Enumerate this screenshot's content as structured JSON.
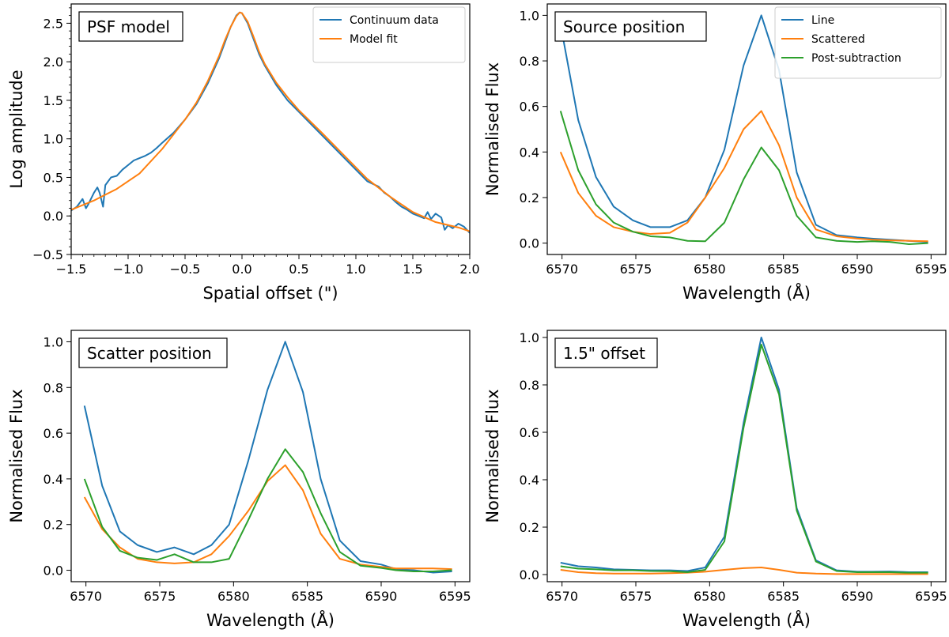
{
  "colors": {
    "blue": "#1f77b4",
    "orange": "#ff7f0e",
    "green": "#2ca02c"
  },
  "chart_data": [
    {
      "type": "line",
      "title": "PSF model",
      "xlabel": "Spatial offset (\")",
      "ylabel": "Log amplitude",
      "xlim": [
        -1.5,
        2.0
      ],
      "ylim": [
        -0.5,
        2.75
      ],
      "xticks": [
        -1.5,
        -1.0,
        -0.5,
        0.0,
        0.5,
        1.0,
        1.5,
        2.0
      ],
      "xtick_labels": [
        "−1.5",
        "−1.0",
        "−0.5",
        "0.0",
        "0.5",
        "1.0",
        "1.5",
        "2.0"
      ],
      "yticks": [
        -0.5,
        0.0,
        0.5,
        1.0,
        1.5,
        2.0,
        2.5
      ],
      "ytick_labels": [
        "−0.5",
        "0.0",
        "0.5",
        "1.0",
        "1.5",
        "2.0",
        "2.5"
      ],
      "legend_position": "top-right",
      "series": [
        {
          "name": "Continuum data",
          "color": "#1f77b4",
          "x": [
            -1.5,
            -1.45,
            -1.4,
            -1.37,
            -1.35,
            -1.3,
            -1.27,
            -1.25,
            -1.22,
            -1.2,
            -1.15,
            -1.1,
            -1.05,
            -1.0,
            -0.95,
            -0.9,
            -0.85,
            -0.8,
            -0.75,
            -0.7,
            -0.6,
            -0.5,
            -0.4,
            -0.3,
            -0.2,
            -0.15,
            -0.1,
            -0.05,
            -0.02,
            0.0,
            0.05,
            0.1,
            0.15,
            0.2,
            0.3,
            0.4,
            0.5,
            0.6,
            0.7,
            0.8,
            0.9,
            1.0,
            1.1,
            1.2,
            1.25,
            1.3,
            1.35,
            1.4,
            1.45,
            1.5,
            1.55,
            1.6,
            1.63,
            1.66,
            1.7,
            1.75,
            1.78,
            1.81,
            1.85,
            1.9,
            1.95,
            2.0
          ],
          "y": [
            0.07,
            0.12,
            0.22,
            0.1,
            0.15,
            0.3,
            0.37,
            0.3,
            0.12,
            0.4,
            0.5,
            0.52,
            0.6,
            0.66,
            0.72,
            0.75,
            0.78,
            0.82,
            0.88,
            0.95,
            1.08,
            1.25,
            1.45,
            1.72,
            2.05,
            2.25,
            2.45,
            2.6,
            2.64,
            2.63,
            2.5,
            2.3,
            2.1,
            1.95,
            1.7,
            1.5,
            1.35,
            1.2,
            1.05,
            0.9,
            0.75,
            0.6,
            0.45,
            0.38,
            0.3,
            0.25,
            0.18,
            0.12,
            0.08,
            0.03,
            0.0,
            -0.03,
            0.05,
            -0.04,
            0.03,
            -0.02,
            -0.18,
            -0.12,
            -0.16,
            -0.1,
            -0.14,
            -0.22
          ]
        },
        {
          "name": "Model fit",
          "color": "#ff7f0e",
          "x": [
            -1.5,
            -1.3,
            -1.1,
            -0.9,
            -0.7,
            -0.5,
            -0.4,
            -0.3,
            -0.2,
            -0.15,
            -0.1,
            -0.05,
            -0.02,
            0.0,
            0.05,
            0.1,
            0.15,
            0.2,
            0.3,
            0.4,
            0.5,
            0.7,
            0.9,
            1.1,
            1.3,
            1.5,
            1.7,
            1.9,
            2.0
          ],
          "y": [
            0.08,
            0.2,
            0.35,
            0.55,
            0.87,
            1.25,
            1.47,
            1.75,
            2.08,
            2.28,
            2.45,
            2.59,
            2.64,
            2.63,
            2.52,
            2.33,
            2.13,
            1.97,
            1.73,
            1.54,
            1.37,
            1.08,
            0.78,
            0.48,
            0.25,
            0.05,
            -0.08,
            -0.15,
            -0.2
          ]
        }
      ]
    },
    {
      "type": "line",
      "title": "Source position",
      "xlabel": "Wavelength (Å)",
      "ylabel": "Normalised Flux",
      "xlim": [
        6569,
        6596
      ],
      "ylim": [
        -0.05,
        1.05
      ],
      "xticks": [
        6570,
        6575,
        6580,
        6585,
        6590,
        6595
      ],
      "xtick_labels": [
        "6570",
        "6575",
        "6580",
        "6585",
        "6590",
        "6595"
      ],
      "yticks": [
        0.0,
        0.2,
        0.4,
        0.6,
        0.8,
        1.0
      ],
      "ytick_labels": [
        "0.0",
        "0.2",
        "0.4",
        "0.6",
        "0.8",
        "1.0"
      ],
      "legend_position": "top-right",
      "x": [
        6569.9,
        6571.1,
        6572.3,
        6573.5,
        6574.8,
        6576.0,
        6577.3,
        6578.5,
        6579.7,
        6581.0,
        6582.3,
        6583.5,
        6584.7,
        6585.9,
        6587.2,
        6588.6,
        6590.0,
        6591.0,
        6592.2,
        6593.5,
        6594.8
      ],
      "series": [
        {
          "name": "Line",
          "color": "#1f77b4",
          "values": [
            0.96,
            0.54,
            0.29,
            0.16,
            0.1,
            0.07,
            0.07,
            0.1,
            0.2,
            0.41,
            0.78,
            1.0,
            0.76,
            0.31,
            0.08,
            0.035,
            0.025,
            0.02,
            0.015,
            0.01,
            0.005
          ]
        },
        {
          "name": "Scattered",
          "color": "#ff7f0e",
          "values": [
            0.4,
            0.22,
            0.12,
            0.07,
            0.05,
            0.04,
            0.045,
            0.09,
            0.2,
            0.33,
            0.5,
            0.58,
            0.43,
            0.2,
            0.06,
            0.03,
            0.02,
            0.015,
            0.012,
            0.01,
            0.008
          ]
        },
        {
          "name": "Post-subtraction",
          "color": "#2ca02c",
          "values": [
            0.58,
            0.32,
            0.17,
            0.09,
            0.05,
            0.03,
            0.025,
            0.01,
            0.008,
            0.09,
            0.28,
            0.42,
            0.32,
            0.12,
            0.025,
            0.01,
            0.005,
            0.008,
            0.005,
            -0.005,
            0.0
          ]
        }
      ]
    },
    {
      "type": "line",
      "title": "Scatter position",
      "xlabel": "Wavelength (Å)",
      "ylabel": "Normalised Flux",
      "xlim": [
        6569,
        6596
      ],
      "ylim": [
        -0.05,
        1.05
      ],
      "xticks": [
        6570,
        6575,
        6580,
        6585,
        6590,
        6595
      ],
      "xtick_labels": [
        "6570",
        "6575",
        "6580",
        "6585",
        "6590",
        "6595"
      ],
      "yticks": [
        0.0,
        0.2,
        0.4,
        0.6,
        0.8,
        1.0
      ],
      "ytick_labels": [
        "0.0",
        "0.2",
        "0.4",
        "0.6",
        "0.8",
        "1.0"
      ],
      "x": [
        6569.9,
        6571.1,
        6572.3,
        6573.5,
        6574.8,
        6576.0,
        6577.3,
        6578.5,
        6579.7,
        6581.0,
        6582.3,
        6583.5,
        6584.7,
        6585.9,
        6587.2,
        6588.6,
        6590.0,
        6591.0,
        6592.2,
        6593.5,
        6594.8
      ],
      "series": [
        {
          "name": "Line",
          "color": "#1f77b4",
          "values": [
            0.72,
            0.37,
            0.17,
            0.11,
            0.08,
            0.1,
            0.07,
            0.11,
            0.2,
            0.48,
            0.79,
            1.0,
            0.78,
            0.4,
            0.13,
            0.04,
            0.025,
            0.005,
            0.0,
            -0.01,
            -0.005
          ]
        },
        {
          "name": "Scattered",
          "color": "#ff7f0e",
          "values": [
            0.32,
            0.18,
            0.1,
            0.05,
            0.035,
            0.03,
            0.035,
            0.07,
            0.15,
            0.26,
            0.39,
            0.46,
            0.35,
            0.16,
            0.05,
            0.025,
            0.015,
            0.008,
            0.008,
            0.008,
            0.005
          ]
        },
        {
          "name": "Post-subtraction",
          "color": "#2ca02c",
          "values": [
            0.4,
            0.19,
            0.085,
            0.055,
            0.045,
            0.07,
            0.035,
            0.035,
            0.05,
            0.22,
            0.4,
            0.53,
            0.43,
            0.25,
            0.08,
            0.02,
            0.01,
            0.0,
            -0.005,
            -0.005,
            0.0
          ]
        }
      ]
    },
    {
      "type": "line",
      "title": "1.5\" offset",
      "xlabel": "Wavelength (Å)",
      "ylabel": "Normalised Flux",
      "xlim": [
        6569,
        6596
      ],
      "ylim": [
        -0.03,
        1.03
      ],
      "xticks": [
        6570,
        6575,
        6580,
        6585,
        6590,
        6595
      ],
      "xtick_labels": [
        "6570",
        "6575",
        "6580",
        "6585",
        "6590",
        "6595"
      ],
      "yticks": [
        0.0,
        0.2,
        0.4,
        0.6,
        0.8,
        1.0
      ],
      "ytick_labels": [
        "0.0",
        "0.2",
        "0.4",
        "0.6",
        "0.8",
        "1.0"
      ],
      "x": [
        6569.9,
        6571.1,
        6572.3,
        6573.5,
        6574.8,
        6576.0,
        6577.3,
        6578.5,
        6579.7,
        6581.0,
        6582.3,
        6583.5,
        6584.7,
        6585.9,
        6587.2,
        6588.6,
        6590.0,
        6591.0,
        6592.2,
        6593.5,
        6594.8
      ],
      "series": [
        {
          "name": "Line",
          "color": "#1f77b4",
          "values": [
            0.05,
            0.035,
            0.03,
            0.022,
            0.02,
            0.018,
            0.018,
            0.015,
            0.03,
            0.16,
            0.64,
            1.0,
            0.78,
            0.28,
            0.06,
            0.018,
            0.012,
            0.012,
            0.013,
            0.01,
            0.01
          ]
        },
        {
          "name": "Scattered",
          "color": "#ff7f0e",
          "values": [
            0.02,
            0.01,
            0.006,
            0.004,
            0.004,
            0.004,
            0.006,
            0.008,
            0.012,
            0.02,
            0.027,
            0.03,
            0.02,
            0.008,
            0.004,
            0.002,
            0.002,
            0.002,
            0.002,
            0.002,
            0.002
          ]
        },
        {
          "name": "Post-subtraction",
          "color": "#2ca02c",
          "values": [
            0.035,
            0.025,
            0.022,
            0.018,
            0.018,
            0.015,
            0.014,
            0.01,
            0.02,
            0.14,
            0.62,
            0.97,
            0.76,
            0.27,
            0.055,
            0.015,
            0.01,
            0.01,
            0.01,
            0.008,
            0.008
          ]
        }
      ]
    }
  ]
}
